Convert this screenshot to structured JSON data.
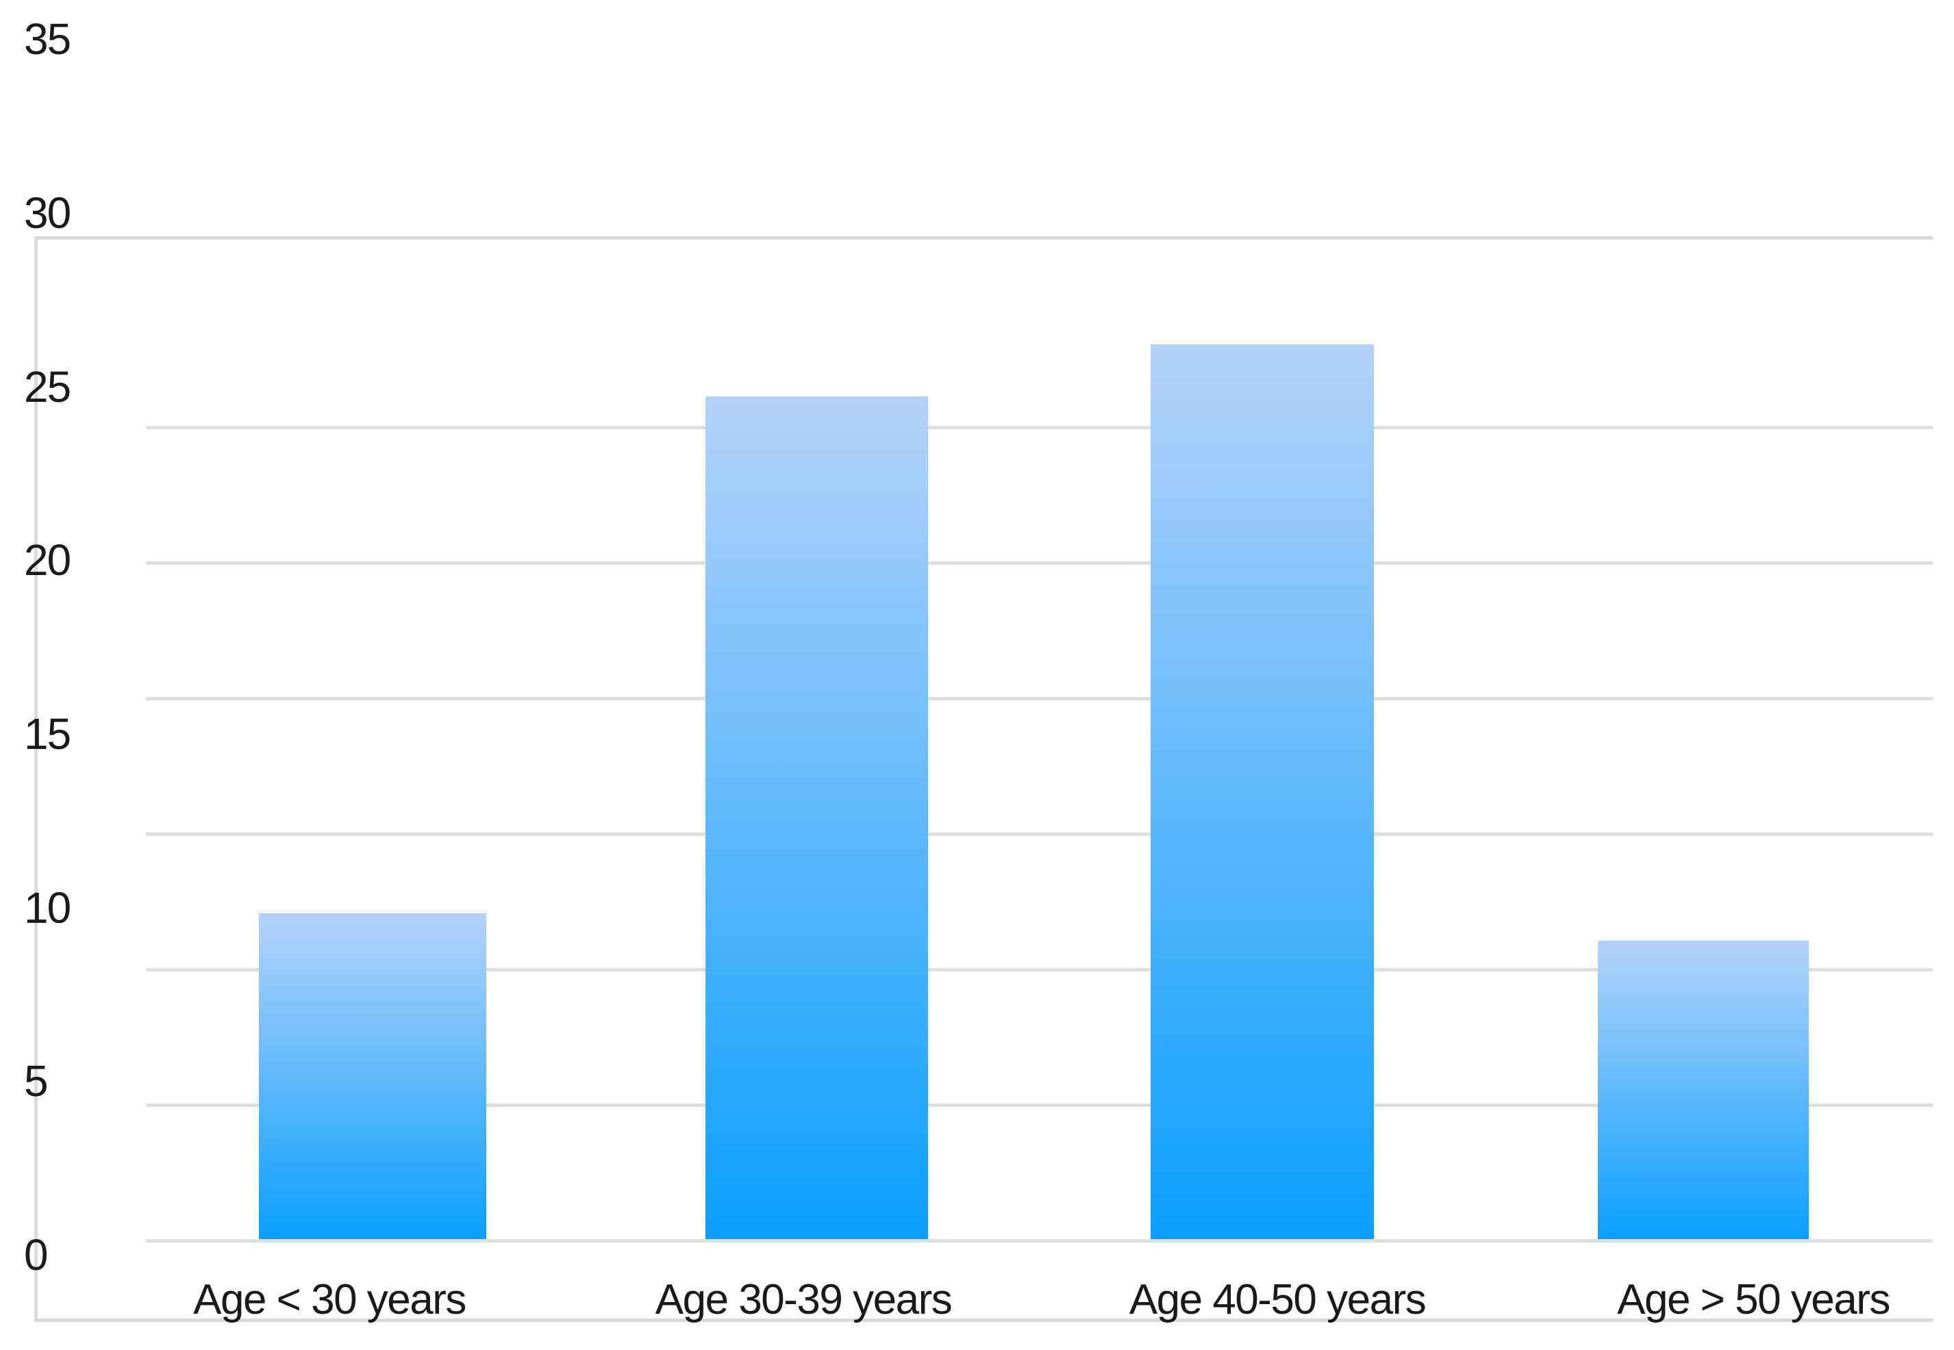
{
  "chart_data": {
    "type": "bar",
    "title": "",
    "subtitle": "",
    "xlabel": "",
    "ylabel": "",
    "categories": [
      "Age < 30 years",
      "Age 30-39 years",
      "Age 40-50 years",
      "Age > 50 years"
    ],
    "values": [
      10,
      25,
      26.5,
      9.2
    ],
    "series": [
      {
        "name": "",
        "values": [
          10,
          25,
          26.5,
          9.2
        ]
      }
    ],
    "ylim": [
      0,
      35
    ],
    "yticks": [
      0,
      5,
      10,
      15,
      20,
      25,
      30,
      35
    ],
    "ytick_labels": [
      "0",
      "5",
      "10",
      "15",
      "20",
      "25",
      "30",
      "35"
    ],
    "gridline_values": [
      0,
      5,
      10,
      15,
      20,
      25,
      30
    ],
    "grid": "horizontal",
    "legend_position": "none",
    "bar_fill": {
      "type": "gradient",
      "top_color": "#b5d3fa",
      "bottom_color": "#0a9ffc"
    }
  },
  "colors": {
    "background": "#ffffff",
    "bar_gradient_top": "#b5d3fa",
    "bar_gradient_bottom": "#0a9ffc",
    "gridline": "#dfdfdf",
    "axis_border": "#d9d9d9",
    "text": "#1a1a1a"
  }
}
